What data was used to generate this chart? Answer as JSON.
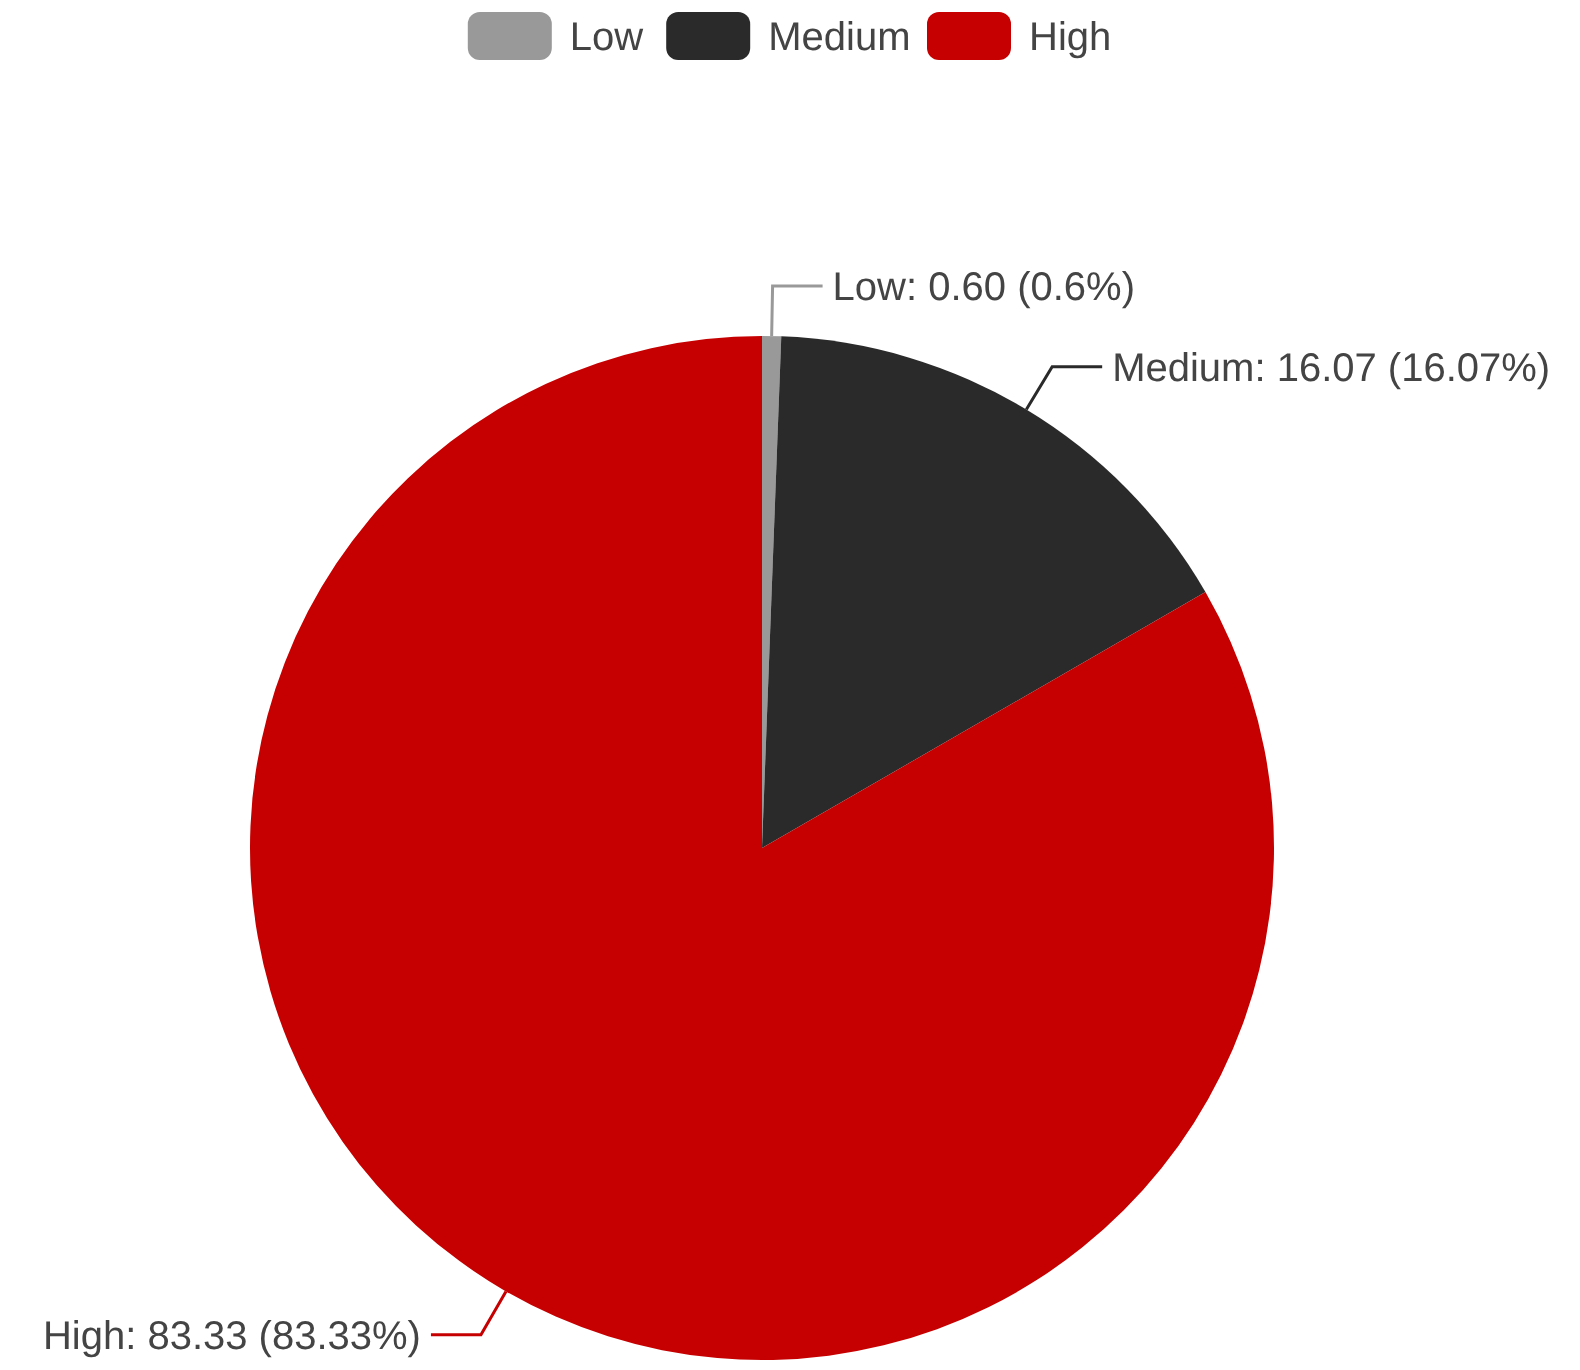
{
  "chart_data": {
    "type": "pie",
    "categories": [
      "Low",
      "Medium",
      "High"
    ],
    "values": [
      0.6,
      16.07,
      83.33
    ],
    "colors": [
      "#999999",
      "#2a2a2a",
      "#c60000"
    ],
    "legend": "top",
    "value_labels": [
      "Low: 0.60 (0.6%)",
      "Medium: 16.07 (16.07%)",
      "High: 83.33 (83.33%)"
    ]
  }
}
